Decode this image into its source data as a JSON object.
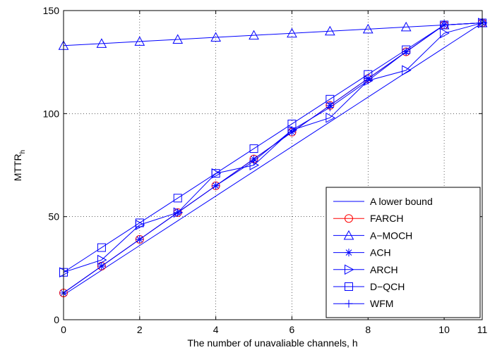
{
  "chart_data": {
    "type": "line",
    "title": "",
    "xlabel": "The number of unavaliable channels, h",
    "ylabel_main": "MTTR",
    "ylabel_sub": "h",
    "xlim": [
      0,
      11
    ],
    "ylim": [
      0,
      150
    ],
    "xticks": [
      0,
      2,
      4,
      6,
      8,
      10,
      11
    ],
    "yticks": [
      0,
      50,
      100,
      150
    ],
    "grid": true,
    "legend_position": "bottom-right",
    "x": [
      0,
      1,
      2,
      3,
      4,
      5,
      6,
      7,
      8,
      9,
      10,
      11
    ],
    "series": [
      {
        "name": "A lower bound",
        "color": "#0000ff",
        "marker": "none",
        "values": [
          12,
          24,
          36,
          48,
          60,
          72,
          84,
          96,
          108,
          120,
          132,
          144
        ]
      },
      {
        "name": "FARCH",
        "color": "#ff0000",
        "marker": "circle",
        "values": [
          13,
          26,
          39,
          52,
          65,
          78,
          91,
          104,
          117,
          130,
          143,
          144
        ]
      },
      {
        "name": "A−MOCH",
        "color": "#0000ff",
        "marker": "triangle-up",
        "values": [
          133,
          134,
          135,
          136,
          137,
          138,
          139,
          140,
          141,
          142,
          143,
          144
        ]
      },
      {
        "name": "ACH",
        "color": "#0000ff",
        "marker": "asterisk",
        "values": [
          13,
          26,
          39,
          52,
          65,
          78,
          91,
          104,
          117,
          130,
          143,
          144
        ]
      },
      {
        "name": "ARCH",
        "color": "#0000ff",
        "marker": "triangle-right",
        "values": [
          23,
          29,
          46,
          52,
          71,
          75,
          92,
          98,
          116,
          121,
          139,
          144
        ]
      },
      {
        "name": "D−QCH",
        "color": "#0000ff",
        "marker": "square",
        "values": [
          23,
          35,
          47,
          59,
          71,
          83,
          95,
          107,
          119,
          131,
          143,
          144
        ]
      },
      {
        "name": "WFM",
        "color": "#0000ff",
        "marker": "plus",
        "values": [
          13,
          26,
          39,
          52,
          65,
          77,
          92,
          103,
          116,
          130,
          143,
          144
        ]
      }
    ]
  }
}
